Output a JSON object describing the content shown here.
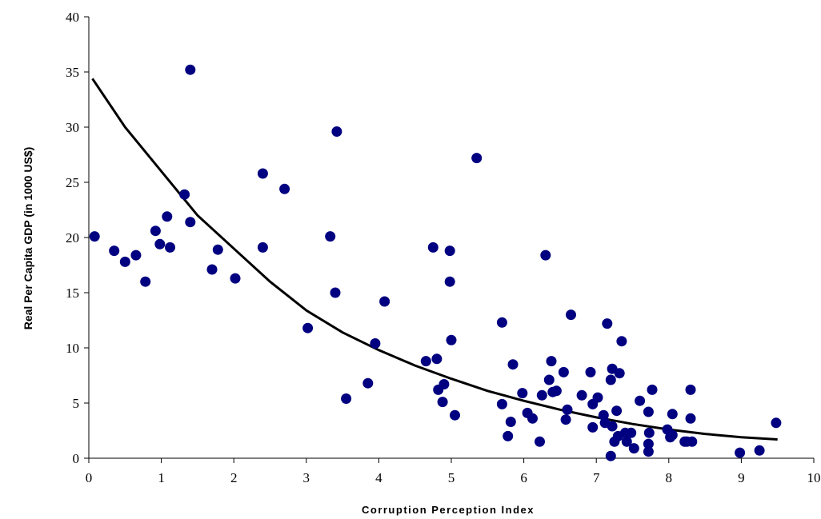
{
  "chart_data": {
    "type": "scatter",
    "title": "",
    "xlabel": "Corruption Perception Index",
    "ylabel": "Real Per Capita GDP (in 1000 US$)",
    "xlim": [
      0,
      10
    ],
    "ylim": [
      0,
      40
    ],
    "x_ticks": [
      "0",
      "1",
      "2",
      "3",
      "4",
      "5",
      "6",
      "7",
      "8",
      "9",
      "10"
    ],
    "y_ticks": [
      "0",
      "5",
      "10",
      "15",
      "20",
      "25",
      "30",
      "35",
      "40"
    ],
    "grid": false,
    "legend": "none",
    "colors": {
      "points": "#000080",
      "trend": "#000000"
    },
    "series": [
      {
        "kind": "scatter",
        "points": [
          [
            0.08,
            20.1
          ],
          [
            0.35,
            18.8
          ],
          [
            0.5,
            17.8
          ],
          [
            0.65,
            18.4
          ],
          [
            0.78,
            16.0
          ],
          [
            0.92,
            20.6
          ],
          [
            0.98,
            19.4
          ],
          [
            1.08,
            21.9
          ],
          [
            1.12,
            19.1
          ],
          [
            1.32,
            23.9
          ],
          [
            1.4,
            21.4
          ],
          [
            1.4,
            35.2
          ],
          [
            1.7,
            17.1
          ],
          [
            1.78,
            18.9
          ],
          [
            2.02,
            16.3
          ],
          [
            2.4,
            25.8
          ],
          [
            2.4,
            19.1
          ],
          [
            2.7,
            24.4
          ],
          [
            3.02,
            11.8
          ],
          [
            3.33,
            20.1
          ],
          [
            3.4,
            15.0
          ],
          [
            3.42,
            29.6
          ],
          [
            3.55,
            5.4
          ],
          [
            3.85,
            6.8
          ],
          [
            3.95,
            10.4
          ],
          [
            4.08,
            14.2
          ],
          [
            4.65,
            8.8
          ],
          [
            4.75,
            19.1
          ],
          [
            4.8,
            9.0
          ],
          [
            4.82,
            6.2
          ],
          [
            4.88,
            5.1
          ],
          [
            4.9,
            6.7
          ],
          [
            4.98,
            18.8
          ],
          [
            4.98,
            16.0
          ],
          [
            5.0,
            10.7
          ],
          [
            5.05,
            3.9
          ],
          [
            5.35,
            27.2
          ],
          [
            5.7,
            12.3
          ],
          [
            5.7,
            4.9
          ],
          [
            5.78,
            2.0
          ],
          [
            5.82,
            3.3
          ],
          [
            5.85,
            8.5
          ],
          [
            5.98,
            5.9
          ],
          [
            6.05,
            4.1
          ],
          [
            6.12,
            3.6
          ],
          [
            6.22,
            1.5
          ],
          [
            6.25,
            5.7
          ],
          [
            6.3,
            18.4
          ],
          [
            6.35,
            7.1
          ],
          [
            6.38,
            8.8
          ],
          [
            6.4,
            6.0
          ],
          [
            6.45,
            6.1
          ],
          [
            6.55,
            7.8
          ],
          [
            6.58,
            3.5
          ],
          [
            6.6,
            4.4
          ],
          [
            6.65,
            13.0
          ],
          [
            6.8,
            5.7
          ],
          [
            6.92,
            7.8
          ],
          [
            6.95,
            2.8
          ],
          [
            6.95,
            4.9
          ],
          [
            7.02,
            5.5
          ],
          [
            7.1,
            3.9
          ],
          [
            7.12,
            3.2
          ],
          [
            7.15,
            12.2
          ],
          [
            7.2,
            0.2
          ],
          [
            7.2,
            7.1
          ],
          [
            7.22,
            8.1
          ],
          [
            7.22,
            2.9
          ],
          [
            7.25,
            1.5
          ],
          [
            7.28,
            4.3
          ],
          [
            7.3,
            2.0
          ],
          [
            7.32,
            7.7
          ],
          [
            7.35,
            10.6
          ],
          [
            7.4,
            2.3
          ],
          [
            7.42,
            1.5
          ],
          [
            7.48,
            2.3
          ],
          [
            7.52,
            0.9
          ],
          [
            7.6,
            5.2
          ],
          [
            7.72,
            0.6
          ],
          [
            7.72,
            1.3
          ],
          [
            7.72,
            4.2
          ],
          [
            7.73,
            2.3
          ],
          [
            7.77,
            6.2
          ],
          [
            7.98,
            2.6
          ],
          [
            8.02,
            1.9
          ],
          [
            8.05,
            4.0
          ],
          [
            8.05,
            2.1
          ],
          [
            8.22,
            1.5
          ],
          [
            8.25,
            1.5
          ],
          [
            8.3,
            6.2
          ],
          [
            8.3,
            3.6
          ],
          [
            8.32,
            1.5
          ],
          [
            8.98,
            0.5
          ],
          [
            9.25,
            0.7
          ],
          [
            9.48,
            3.2
          ]
        ]
      },
      {
        "kind": "trendline",
        "points": [
          [
            0.05,
            34.4
          ],
          [
            0.5,
            30.0
          ],
          [
            1.0,
            26.0
          ],
          [
            1.5,
            22.0
          ],
          [
            2.0,
            19.0
          ],
          [
            2.5,
            16.0
          ],
          [
            3.0,
            13.4
          ],
          [
            3.5,
            11.4
          ],
          [
            4.0,
            9.8
          ],
          [
            4.5,
            8.4
          ],
          [
            5.0,
            7.2
          ],
          [
            5.5,
            6.1
          ],
          [
            6.0,
            5.2
          ],
          [
            6.5,
            4.4
          ],
          [
            7.0,
            3.7
          ],
          [
            7.5,
            3.1
          ],
          [
            8.0,
            2.6
          ],
          [
            8.5,
            2.2
          ],
          [
            9.0,
            1.9
          ],
          [
            9.5,
            1.7
          ]
        ]
      }
    ]
  }
}
